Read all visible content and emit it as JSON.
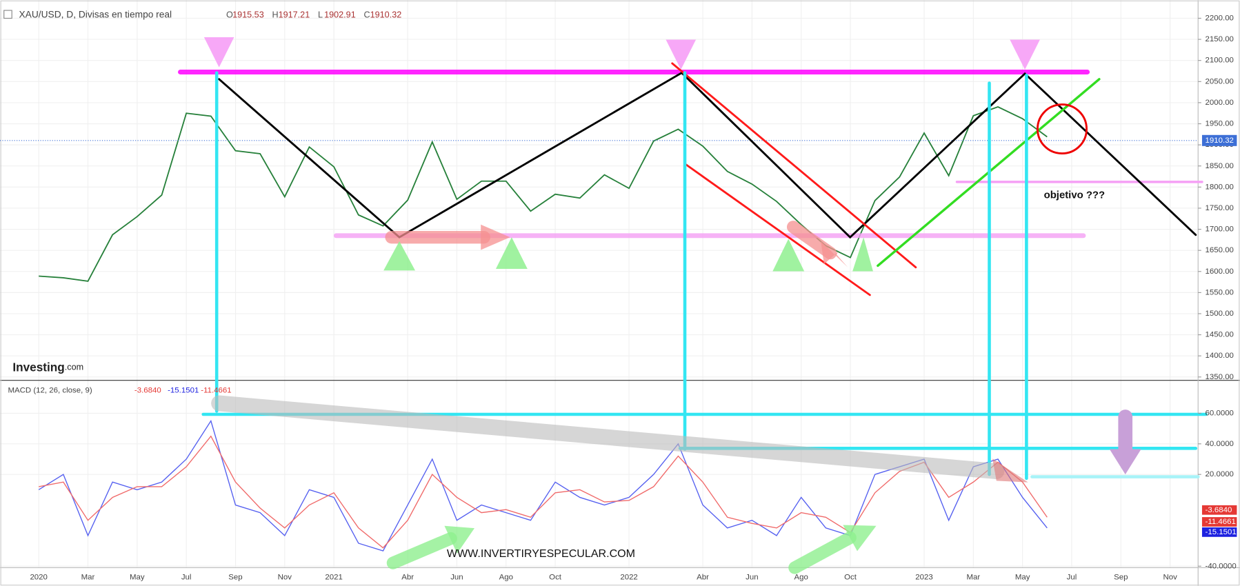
{
  "header": {
    "title": "XAU/USD, D, Divisas en tiempo real",
    "ohlc": [
      {
        "key": "O",
        "value": 1915.53
      },
      {
        "key": "H",
        "value": 1917.21
      },
      {
        "key": "L",
        "value": 1902.91
      },
      {
        "key": "C",
        "value": 1910.32
      }
    ]
  },
  "annotations": {
    "target": "objetivo ???",
    "website": "WWW.INVERTIRYESPECULAR.COM",
    "logo": "Investing",
    "logo_suffix": ".com"
  },
  "chart_data": [
    {
      "type": "line",
      "color": "#26803a",
      "values": [
        1589,
        1585,
        1577,
        1687,
        1730,
        1781,
        1975,
        1968,
        1886,
        1879,
        1777,
        1895,
        1848,
        1734,
        1708,
        1769,
        1907,
        1771,
        1814,
        1814,
        1743,
        1783,
        1774,
        1829,
        1797,
        1909,
        1937,
        1897,
        1837,
        1807,
        1766,
        1711,
        1661,
        1633,
        1768,
        1824,
        1928,
        1827,
        1969,
        1990,
        1962,
        1919,
        null,
        null,
        null,
        null,
        null
      ],
      "ylim": [
        1342,
        2243
      ],
      "yticks": [
        {
          "value": 1350,
          "label": "1350.00"
        },
        {
          "value": 1400,
          "label": "1400.00"
        },
        {
          "value": 1450,
          "label": "1450.00"
        },
        {
          "value": 1500,
          "label": "1500.00"
        },
        {
          "value": 1550,
          "label": "1550.00"
        },
        {
          "value": 1600,
          "label": "1600.00"
        },
        {
          "value": 1650,
          "label": "1650.00"
        },
        {
          "value": 1700,
          "label": "1700.00"
        },
        {
          "value": 1750,
          "label": "1750.00"
        },
        {
          "value": 1800,
          "label": "1800.00"
        },
        {
          "value": 1850,
          "label": "1850.00"
        },
        {
          "value": 1900,
          "label": "1900.00"
        },
        {
          "value": 1950,
          "label": "1950.00"
        },
        {
          "value": 2000,
          "label": "2000.00"
        },
        {
          "value": 2050,
          "label": "2050.00"
        },
        {
          "value": 2100,
          "label": "2100.00"
        },
        {
          "value": 2150,
          "label": "2150.00"
        },
        {
          "value": 2200,
          "label": "2200.00"
        }
      ],
      "last_price": 1910.32,
      "grid": true
    },
    {
      "type": "line",
      "title": "MACD (12, 26, close, 9)",
      "indicator_values": [
        {
          "value": -3.684,
          "label": "-3.6840",
          "color": "#e53935"
        },
        {
          "value": -15.1501,
          "label": "-15.1501",
          "color": "#1e22e0"
        },
        {
          "value": -11.4661,
          "label": "-11.4661",
          "color": "#e53935"
        }
      ],
      "categories": [
        "2020",
        null,
        "Mar",
        null,
        "May",
        null,
        "Jul",
        null,
        "Sep",
        null,
        "Nov",
        null,
        "2021",
        null,
        null,
        "Abr",
        null,
        "Jun",
        null,
        "Ago",
        null,
        "Oct",
        null,
        null,
        "2022",
        null,
        null,
        "Abr",
        null,
        "Jun",
        null,
        "Ago",
        null,
        "Oct",
        null,
        null,
        "2023",
        null,
        "Mar",
        null,
        "May",
        null,
        "Jul",
        null,
        "Sep",
        null,
        "Nov"
      ],
      "series": [
        {
          "color": "#5560f0",
          "values": [
            10,
            20,
            -20,
            15,
            10,
            15,
            30,
            55,
            0,
            -5,
            -20,
            10,
            5,
            -25,
            -30,
            0,
            30,
            -10,
            0,
            -5,
            -10,
            15,
            5,
            0,
            5,
            20,
            40,
            0,
            -15,
            -10,
            -20,
            5,
            -15,
            -20,
            20,
            25,
            30,
            -10,
            25,
            30,
            5,
            -15,
            null,
            null,
            null,
            null,
            null
          ]
        },
        {
          "color": "#f06a6a",
          "values": [
            12,
            15,
            -10,
            5,
            12,
            12,
            25,
            45,
            15,
            -2,
            -15,
            0,
            8,
            -15,
            -28,
            -10,
            20,
            5,
            -5,
            -3,
            -8,
            8,
            10,
            2,
            3,
            12,
            32,
            15,
            -8,
            -12,
            -15,
            -5,
            -8,
            -18,
            8,
            22,
            28,
            5,
            15,
            28,
            15,
            -8,
            null,
            null,
            null,
            null,
            null
          ]
        }
      ],
      "ylim": [
        -41,
        81
      ],
      "yticks": [
        {
          "value": -40,
          "label": "-40.0000"
        },
        {
          "value": 20,
          "label": "20.0000"
        },
        {
          "value": 40,
          "label": "40.0000"
        },
        {
          "value": 60,
          "label": "60.0000"
        }
      ],
      "grid": true
    }
  ]
}
